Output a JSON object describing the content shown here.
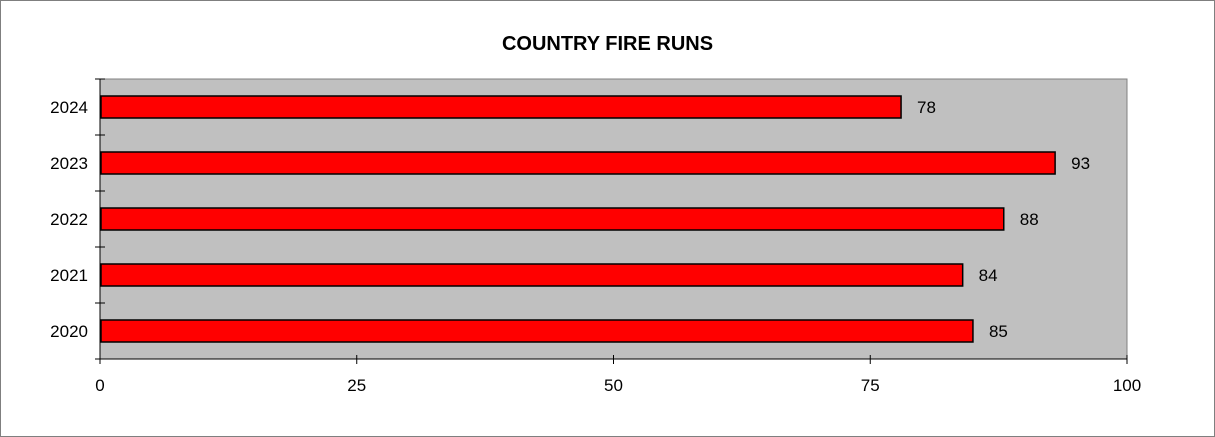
{
  "chart_data": {
    "type": "bar",
    "orientation": "horizontal",
    "title": "COUNTRY FIRE RUNS",
    "xlabel": "",
    "ylabel": "",
    "categories": [
      "2024",
      "2023",
      "2022",
      "2021",
      "2020"
    ],
    "values": [
      78,
      93,
      88,
      84,
      85
    ],
    "xlim": [
      0,
      100
    ],
    "xticks": [
      "0",
      "25",
      "50",
      "75",
      "100"
    ],
    "grid": false,
    "legend": "none",
    "data_labels": true
  },
  "colors": {
    "bar_fill": "#ff0000",
    "bar_stroke": "#000000",
    "plot_background": "#c0c0c0",
    "axis": "#000000",
    "frame_border": "#7f7f7f"
  }
}
